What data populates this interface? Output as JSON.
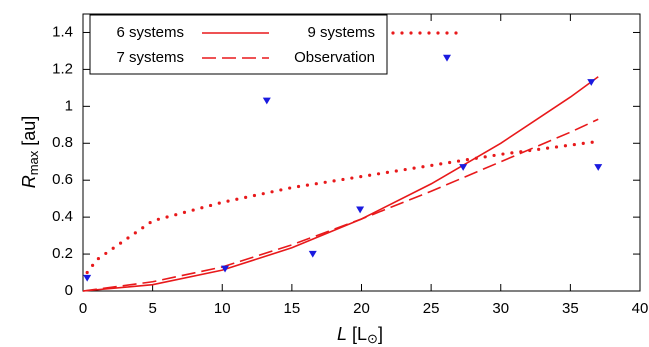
{
  "chart_data": {
    "type": "line",
    "xlabel": [
      "L",
      " [L",
      "⊙",
      "]"
    ],
    "ylabel": [
      "R",
      "max",
      " [au]"
    ],
    "xlim": [
      0,
      40
    ],
    "xticks": [
      0,
      5,
      10,
      15,
      20,
      25,
      30,
      35,
      40
    ],
    "ylim": [
      0,
      1.5
    ],
    "yticks": [
      0,
      0.2,
      0.4,
      0.6,
      0.8,
      1,
      1.2,
      1.4
    ],
    "legend": "upper left",
    "series": [
      {
        "name": "6 systems",
        "color": "#e8191b",
        "style": "solid",
        "x": [
          0,
          5,
          10,
          15,
          20,
          25,
          30,
          35,
          37
        ],
        "values": [
          0,
          0.034,
          0.113,
          0.234,
          0.39,
          0.58,
          0.8,
          1.05,
          1.16
        ]
      },
      {
        "name": "9 systems",
        "color": "#e8191b",
        "style": "dotted",
        "x": [
          0.3,
          1,
          5,
          10,
          15,
          20,
          25,
          30,
          35,
          37
        ],
        "values": [
          0.1,
          0.17,
          0.38,
          0.48,
          0.56,
          0.62,
          0.68,
          0.74,
          0.79,
          0.81
        ]
      },
      {
        "name": "7 systems",
        "color": "#e8191b",
        "style": "dashed",
        "x": [
          0,
          5,
          10,
          15,
          20,
          25,
          30,
          35,
          37
        ],
        "values": [
          0,
          0.05,
          0.13,
          0.25,
          0.39,
          0.54,
          0.7,
          0.86,
          0.93
        ]
      },
      {
        "name": "Observation",
        "color": "#1a1adf",
        "style": "points",
        "x": [
          0.3,
          10.2,
          13.2,
          16.5,
          19.9,
          27.3,
          36.5,
          37
        ],
        "values": [
          0.07,
          0.12,
          1.03,
          0.2,
          0.44,
          0.67,
          1.13,
          0.67
        ]
      }
    ]
  }
}
